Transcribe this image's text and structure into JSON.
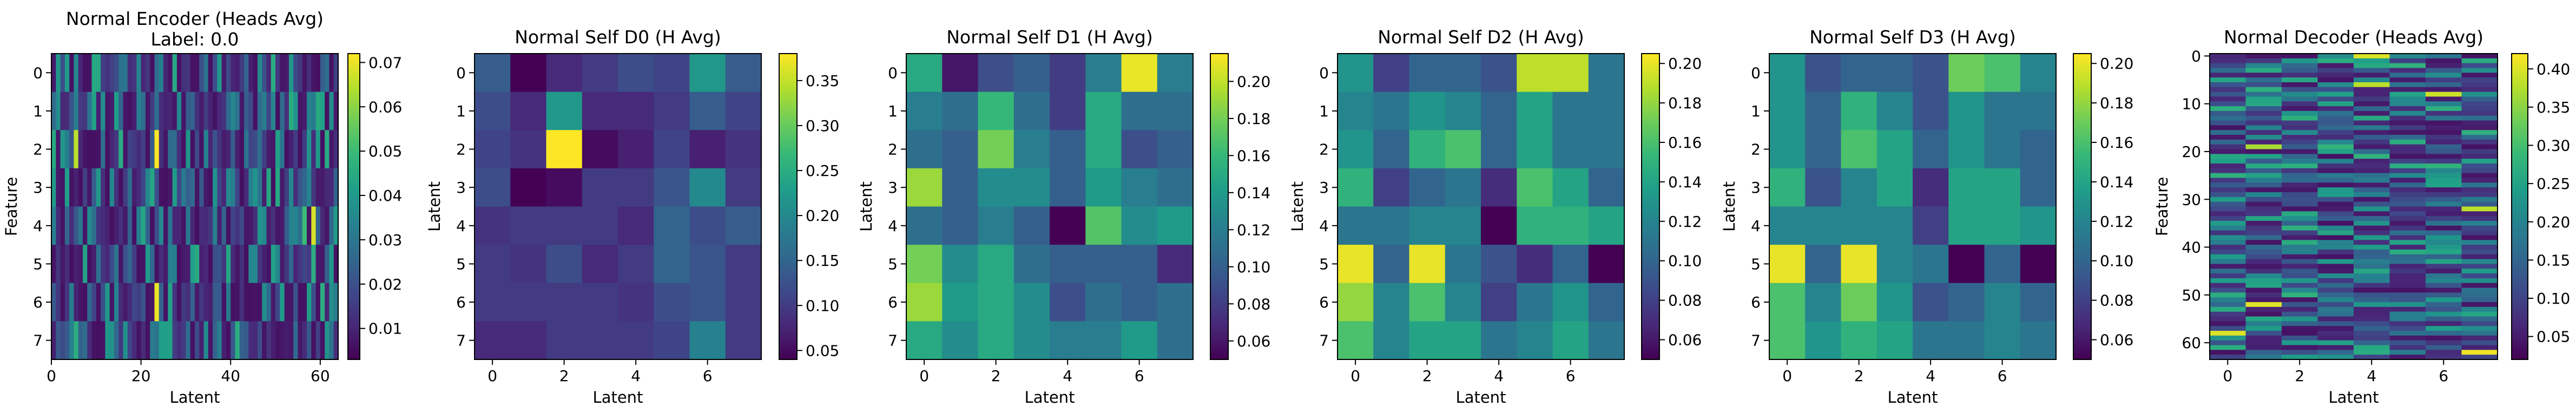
{
  "figure": {
    "colormap": "viridis",
    "panels": [
      {
        "title": "Normal Encoder (Heads Avg)",
        "subtitle": "Label: 0.0",
        "xlabel": "Latent",
        "ylabel": "Feature",
        "xticks": [
          "0",
          "20",
          "40",
          "60"
        ],
        "yticks": [
          "0",
          "1",
          "2",
          "3",
          "4",
          "5",
          "6",
          "7"
        ],
        "colorbar_ticks": [
          "0.01",
          "0.02",
          "0.03",
          "0.04",
          "0.05",
          "0.06",
          "0.07"
        ]
      },
      {
        "title": "Normal Self D0 (H Avg)",
        "xlabel": "Latent",
        "ylabel": "Latent",
        "xticks": [
          "0",
          "2",
          "4",
          "6"
        ],
        "yticks": [
          "0",
          "1",
          "2",
          "3",
          "4",
          "5",
          "6",
          "7"
        ],
        "colorbar_ticks": [
          "0.05",
          "0.10",
          "0.15",
          "0.20",
          "0.25",
          "0.30",
          "0.35"
        ]
      },
      {
        "title": "Normal Self D1 (H Avg)",
        "xlabel": "Latent",
        "ylabel": "Latent",
        "xticks": [
          "0",
          "2",
          "4",
          "6"
        ],
        "yticks": [
          "0",
          "1",
          "2",
          "3",
          "4",
          "5",
          "6",
          "7"
        ],
        "colorbar_ticks": [
          "0.06",
          "0.08",
          "0.10",
          "0.12",
          "0.14",
          "0.16",
          "0.18",
          "0.20"
        ]
      },
      {
        "title": "Normal Self D2 (H Avg)",
        "xlabel": "Latent",
        "ylabel": "Latent",
        "xticks": [
          "0",
          "2",
          "4",
          "6"
        ],
        "yticks": [
          "0",
          "1",
          "2",
          "3",
          "4",
          "5",
          "6",
          "7"
        ],
        "colorbar_ticks": [
          "0.06",
          "0.08",
          "0.10",
          "0.12",
          "0.14",
          "0.16",
          "0.18",
          "0.20"
        ]
      },
      {
        "title": "Normal Self D3 (H Avg)",
        "xlabel": "Latent",
        "ylabel": "Latent",
        "xticks": [
          "0",
          "2",
          "4",
          "6"
        ],
        "yticks": [
          "0",
          "1",
          "2",
          "3",
          "4",
          "5",
          "6",
          "7"
        ],
        "colorbar_ticks": [
          "0.06",
          "0.08",
          "0.10",
          "0.12",
          "0.14",
          "0.16",
          "0.18",
          "0.20"
        ]
      },
      {
        "title": "Normal Decoder (Heads Avg)",
        "xlabel": "Latent",
        "ylabel": "Feature",
        "xticks": [
          "0",
          "2",
          "4",
          "6"
        ],
        "yticks": [
          "0",
          "10",
          "20",
          "30",
          "40",
          "50",
          "60"
        ],
        "colorbar_ticks": [
          "0.05",
          "0.10",
          "0.15",
          "0.20",
          "0.25",
          "0.30",
          "0.35",
          "0.40"
        ]
      }
    ]
  },
  "chart_data": [
    {
      "type": "heatmap",
      "title": "Normal Encoder (Heads Avg)",
      "subtitle": "Label: 0.0",
      "xlabel": "Latent",
      "ylabel": "Feature",
      "rows": 8,
      "cols": 64,
      "xlim": [
        0,
        64
      ],
      "ylim": [
        0,
        8
      ],
      "colorbar_range": [
        0.003,
        0.072
      ],
      "colormap": "viridis",
      "values_note_highlights": [
        {
          "row": 2,
          "col": 5,
          "value": 0.065
        },
        {
          "row": 2,
          "col": 23,
          "value": 0.072
        },
        {
          "row": 6,
          "col": 23,
          "value": 0.07
        },
        {
          "row": 4,
          "col": 58,
          "value": 0.068
        },
        {
          "row": 4,
          "col": 56,
          "value": 0.05
        },
        {
          "row": 5,
          "col": 32,
          "value": 0.045
        }
      ]
    },
    {
      "type": "heatmap",
      "title": "Normal Self D0 (H Avg)",
      "xlabel": "Latent",
      "ylabel": "Latent",
      "rows": 8,
      "cols": 8,
      "colorbar_range": [
        0.04,
        0.38
      ],
      "colormap": "viridis",
      "values": [
        [
          0.14,
          0.04,
          0.08,
          0.1,
          0.12,
          0.11,
          0.22,
          0.14
        ],
        [
          0.12,
          0.08,
          0.22,
          0.08,
          0.08,
          0.1,
          0.14,
          0.11
        ],
        [
          0.11,
          0.09,
          0.38,
          0.05,
          0.07,
          0.11,
          0.07,
          0.09
        ],
        [
          0.12,
          0.04,
          0.05,
          0.1,
          0.1,
          0.13,
          0.2,
          0.1
        ],
        [
          0.09,
          0.1,
          0.1,
          0.1,
          0.08,
          0.15,
          0.12,
          0.14
        ],
        [
          0.1,
          0.09,
          0.12,
          0.08,
          0.1,
          0.15,
          0.13,
          0.1
        ],
        [
          0.1,
          0.1,
          0.1,
          0.1,
          0.09,
          0.12,
          0.13,
          0.1
        ],
        [
          0.08,
          0.08,
          0.1,
          0.1,
          0.1,
          0.11,
          0.19,
          0.1
        ]
      ]
    },
    {
      "type": "heatmap",
      "title": "Normal Self D1 (H Avg)",
      "xlabel": "Latent",
      "ylabel": "Latent",
      "rows": 8,
      "cols": 8,
      "colorbar_range": [
        0.05,
        0.215
      ],
      "colormap": "viridis",
      "values": [
        [
          0.15,
          0.06,
          0.09,
          0.1,
          0.08,
          0.12,
          0.21,
          0.12
        ],
        [
          0.12,
          0.11,
          0.16,
          0.11,
          0.08,
          0.15,
          0.11,
          0.11
        ],
        [
          0.11,
          0.1,
          0.18,
          0.12,
          0.1,
          0.15,
          0.09,
          0.1
        ],
        [
          0.19,
          0.1,
          0.13,
          0.13,
          0.1,
          0.14,
          0.12,
          0.11
        ],
        [
          0.11,
          0.1,
          0.12,
          0.1,
          0.05,
          0.17,
          0.13,
          0.14
        ],
        [
          0.18,
          0.13,
          0.15,
          0.11,
          0.1,
          0.1,
          0.1,
          0.07
        ],
        [
          0.19,
          0.14,
          0.15,
          0.13,
          0.09,
          0.11,
          0.1,
          0.11
        ],
        [
          0.15,
          0.13,
          0.15,
          0.13,
          0.12,
          0.12,
          0.14,
          0.11
        ]
      ]
    },
    {
      "type": "heatmap",
      "title": "Normal Self D2 (H Avg)",
      "xlabel": "Latent",
      "ylabel": "Latent",
      "rows": 8,
      "cols": 8,
      "colorbar_range": [
        0.05,
        0.205
      ],
      "colormap": "viridis",
      "values": [
        [
          0.13,
          0.08,
          0.1,
          0.1,
          0.09,
          0.19,
          0.19,
          0.11
        ],
        [
          0.12,
          0.11,
          0.13,
          0.12,
          0.1,
          0.14,
          0.11,
          0.11
        ],
        [
          0.13,
          0.1,
          0.15,
          0.16,
          0.1,
          0.14,
          0.11,
          0.11
        ],
        [
          0.15,
          0.08,
          0.1,
          0.11,
          0.07,
          0.16,
          0.14,
          0.1
        ],
        [
          0.11,
          0.11,
          0.12,
          0.12,
          0.05,
          0.15,
          0.15,
          0.14
        ],
        [
          0.2,
          0.1,
          0.2,
          0.11,
          0.09,
          0.07,
          0.1,
          0.05
        ],
        [
          0.18,
          0.12,
          0.16,
          0.12,
          0.08,
          0.11,
          0.13,
          0.1
        ],
        [
          0.16,
          0.12,
          0.14,
          0.14,
          0.11,
          0.12,
          0.14,
          0.11
        ]
      ]
    },
    {
      "type": "heatmap",
      "title": "Normal Self D3 (H Avg)",
      "xlabel": "Latent",
      "ylabel": "Latent",
      "rows": 8,
      "cols": 8,
      "colorbar_range": [
        0.05,
        0.205
      ],
      "colormap": "viridis",
      "values": [
        [
          0.13,
          0.09,
          0.1,
          0.1,
          0.09,
          0.17,
          0.16,
          0.12
        ],
        [
          0.13,
          0.1,
          0.15,
          0.12,
          0.09,
          0.13,
          0.11,
          0.11
        ],
        [
          0.13,
          0.1,
          0.16,
          0.14,
          0.1,
          0.13,
          0.11,
          0.1
        ],
        [
          0.15,
          0.09,
          0.12,
          0.14,
          0.07,
          0.14,
          0.14,
          0.1
        ],
        [
          0.12,
          0.12,
          0.12,
          0.12,
          0.08,
          0.14,
          0.14,
          0.13
        ],
        [
          0.2,
          0.1,
          0.2,
          0.12,
          0.11,
          0.05,
          0.1,
          0.05
        ],
        [
          0.16,
          0.12,
          0.17,
          0.13,
          0.09,
          0.1,
          0.12,
          0.1
        ],
        [
          0.16,
          0.13,
          0.15,
          0.14,
          0.11,
          0.11,
          0.12,
          0.11
        ]
      ]
    },
    {
      "type": "heatmap",
      "title": "Normal Decoder (Heads Avg)",
      "xlabel": "Latent",
      "ylabel": "Feature",
      "rows": 64,
      "cols": 8,
      "colorbar_range": [
        0.02,
        0.42
      ],
      "colormap": "viridis",
      "values_note_highlights": [
        {
          "row": 0,
          "col": 4,
          "value": 0.4
        },
        {
          "row": 6,
          "col": 4,
          "value": 0.38
        },
        {
          "row": 8,
          "col": 6,
          "value": 0.39
        },
        {
          "row": 19,
          "col": 1,
          "value": 0.37
        },
        {
          "row": 32,
          "col": 7,
          "value": 0.38
        },
        {
          "row": 52,
          "col": 1,
          "value": 0.4
        },
        {
          "row": 58,
          "col": 0,
          "value": 0.4
        },
        {
          "row": 62,
          "col": 7,
          "value": 0.41
        }
      ]
    }
  ]
}
